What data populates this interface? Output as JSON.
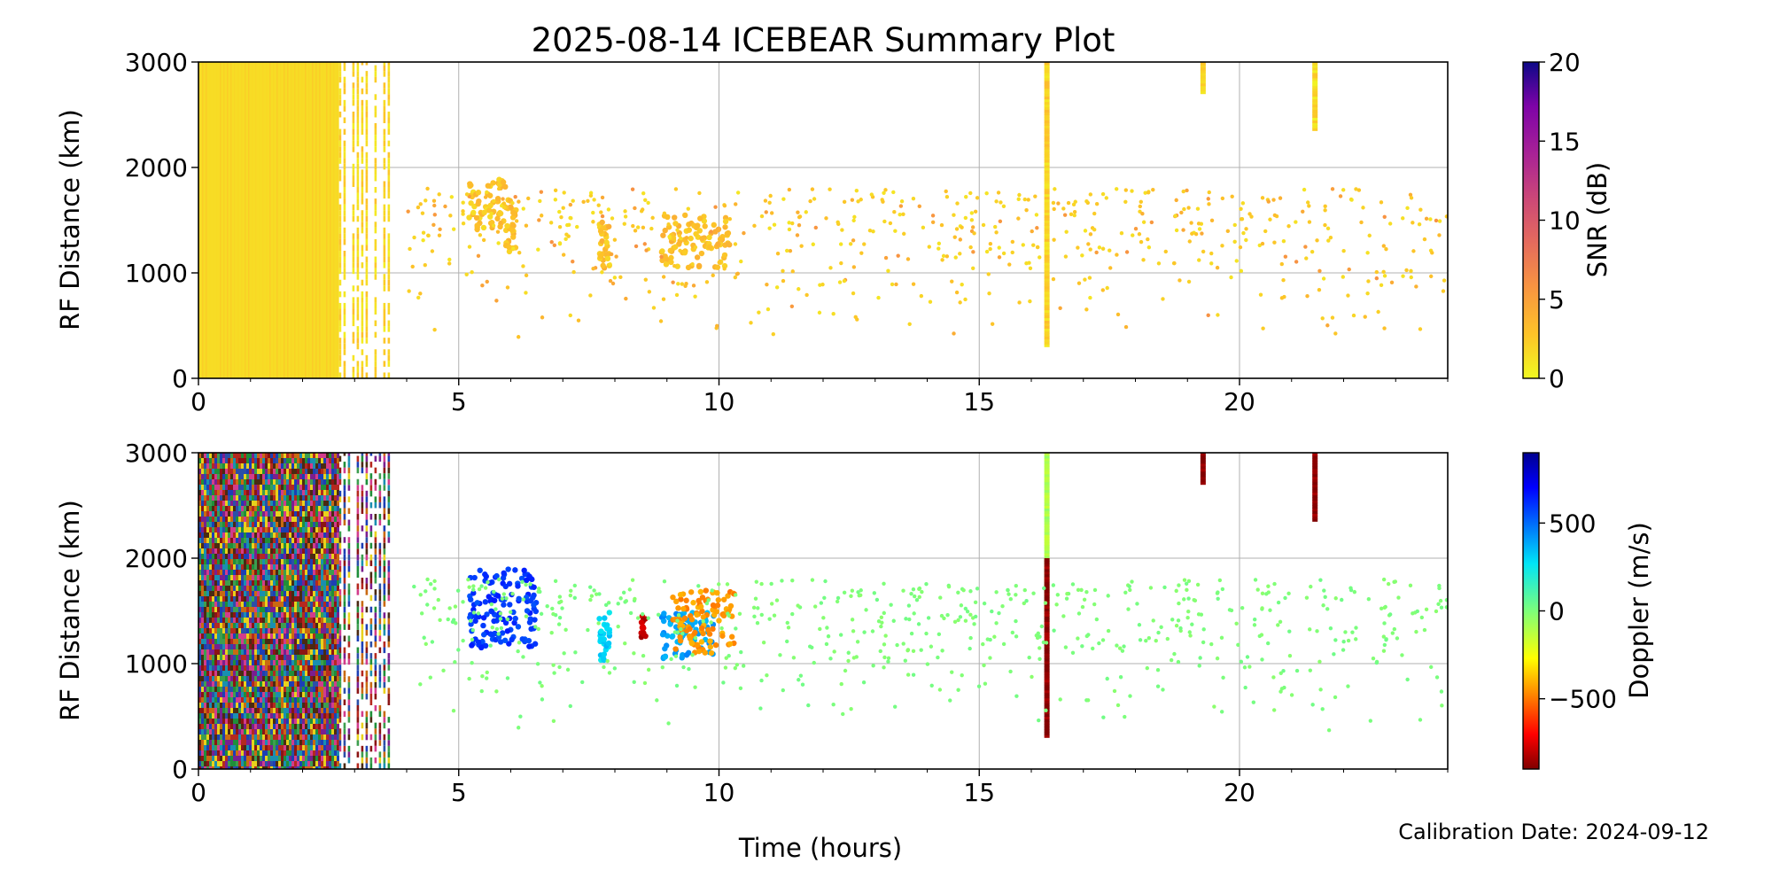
{
  "figure": {
    "title": "2025-08-14 ICEBEAR Summary Plot",
    "xlabel": "Time (hours)",
    "calibration": "Calibration Date: 2024-09-12"
  },
  "chart_data": [
    {
      "type": "scatter",
      "name": "snr",
      "ylabel": "RF Distance (km)",
      "xlim": [
        0,
        24
      ],
      "ylim": [
        0,
        3000
      ],
      "xticks": [
        "0",
        "5",
        "10",
        "15",
        "20"
      ],
      "yticks": [
        "0",
        "1000",
        "2000",
        "3000"
      ],
      "grid": true,
      "colorbar": {
        "label": "SNR (dB)",
        "ticks": [
          "0",
          "5",
          "10",
          "15",
          "20"
        ],
        "range": [
          0,
          20
        ],
        "colormap": "plasma_r"
      },
      "features": [
        {
          "kind": "dense-block",
          "x": [
            0,
            2.7
          ],
          "y": [
            0,
            3000
          ],
          "value": 1.5
        },
        {
          "kind": "stripes",
          "x": [
            2.7,
            3.8
          ],
          "y": [
            0,
            3000
          ],
          "value": 1.8
        },
        {
          "kind": "column",
          "x": 16.3,
          "y": [
            300,
            3000
          ],
          "value": 2
        },
        {
          "kind": "column",
          "x": 19.3,
          "y": [
            2700,
            3000
          ],
          "value": 1.5
        },
        {
          "kind": "column",
          "x": 21.45,
          "y": [
            2350,
            3000
          ],
          "value": 1.5
        },
        {
          "kind": "cluster",
          "x": [
            5.2,
            5.9
          ],
          "y": [
            1400,
            1900
          ],
          "value": 2.5
        },
        {
          "kind": "cluster",
          "x": [
            5.9,
            6.1
          ],
          "y": [
            1200,
            1700
          ],
          "value": 3
        },
        {
          "kind": "cluster",
          "x": [
            7.7,
            7.9
          ],
          "y": [
            1000,
            1500
          ],
          "value": 3
        },
        {
          "kind": "cluster",
          "x": [
            8.9,
            10.2
          ],
          "y": [
            1050,
            1550
          ],
          "value": 3
        },
        {
          "kind": "scatter",
          "x": [
            4,
            24
          ],
          "y": [
            100,
            1800
          ],
          "value": 3
        }
      ]
    },
    {
      "type": "scatter",
      "name": "doppler",
      "ylabel": "RF Distance (km)",
      "xlim": [
        0,
        24
      ],
      "ylim": [
        0,
        3000
      ],
      "xticks": [
        "0",
        "5",
        "10",
        "15",
        "20"
      ],
      "yticks": [
        "0",
        "1000",
        "2000",
        "3000"
      ],
      "grid": true,
      "colorbar": {
        "label": "Doppler (m/s)",
        "ticks": [
          "500",
          "0",
          "−500"
        ],
        "tick_values": [
          500,
          0,
          -500
        ],
        "range": [
          -900,
          900
        ],
        "colormap": "jet_r"
      },
      "features": [
        {
          "kind": "dense-block",
          "x": [
            0,
            2.7
          ],
          "y": [
            0,
            3000
          ],
          "value": "mixed"
        },
        {
          "kind": "stripes",
          "x": [
            2.7,
            3.8
          ],
          "y": [
            0,
            3000
          ],
          "value": "mixed"
        },
        {
          "kind": "column",
          "x": 16.3,
          "y": [
            1400,
            3000
          ],
          "value": -100
        },
        {
          "kind": "column",
          "x": 16.3,
          "y": [
            300,
            2000
          ],
          "value": -880
        },
        {
          "kind": "column",
          "x": 19.3,
          "y": [
            2700,
            3000
          ],
          "value": -880
        },
        {
          "kind": "column",
          "x": 21.45,
          "y": [
            2350,
            3000
          ],
          "value": -880
        },
        {
          "kind": "cluster",
          "x": [
            5.2,
            6.5
          ],
          "y": [
            1150,
            1900
          ],
          "value": 600
        },
        {
          "kind": "cluster",
          "x": [
            7.7,
            7.9
          ],
          "y": [
            1000,
            1500
          ],
          "value": 300
        },
        {
          "kind": "cluster",
          "x": [
            8.5,
            8.6
          ],
          "y": [
            1250,
            1450
          ],
          "value": -800
        },
        {
          "kind": "cluster",
          "x": [
            8.9,
            9.9
          ],
          "y": [
            1050,
            1500
          ],
          "value": 400
        },
        {
          "kind": "cluster",
          "x": [
            9.1,
            10.3
          ],
          "y": [
            1100,
            1700
          ],
          "value": -450
        },
        {
          "kind": "scatter",
          "x": [
            4,
            24
          ],
          "y": [
            100,
            1800
          ],
          "value": 0
        }
      ]
    }
  ]
}
